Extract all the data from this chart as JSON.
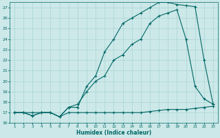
{
  "xlabel": "Humidex (Indice chaleur)",
  "bg_color": "#cce8e8",
  "grid_color": "#aad4d4",
  "line_color": "#006666",
  "xlim": [
    0.5,
    23.5
  ],
  "ylim": [
    16,
    27.5
  ],
  "ytick_values": [
    16,
    17,
    18,
    19,
    20,
    21,
    22,
    23,
    24,
    25,
    26,
    27
  ],
  "xtick_values": [
    1,
    2,
    3,
    4,
    5,
    6,
    7,
    8,
    9,
    10,
    11,
    12,
    13,
    14,
    15,
    16,
    17,
    18,
    19,
    20,
    21,
    22,
    23
  ],
  "series": [
    {
      "x": [
        1,
        2,
        3,
        4,
        5,
        6,
        7,
        8,
        9,
        10,
        11,
        12,
        13,
        14,
        15,
        16,
        17,
        18,
        19,
        20,
        21,
        22,
        23
      ],
      "y": [
        17,
        17,
        17,
        17,
        17,
        16.6,
        17,
        17,
        17,
        17,
        17,
        17,
        17,
        17,
        17,
        17.1,
        17.2,
        17.3,
        17.3,
        17.3,
        17.4,
        17.5,
        17.6
      ]
    },
    {
      "x": [
        1,
        2,
        3,
        4,
        5,
        6,
        7,
        8,
        9,
        10,
        11,
        12,
        13,
        14,
        15,
        16,
        17,
        18,
        19,
        20,
        21,
        22,
        23
      ],
      "y": [
        17,
        17,
        16.7,
        17,
        17,
        16.6,
        17.5,
        17.8,
        19.0,
        20.0,
        20.5,
        22.0,
        22.5,
        23.5,
        24.0,
        25.5,
        26.2,
        26.5,
        26.8,
        24.0,
        19.5,
        18.3,
        17.8
      ]
    },
    {
      "x": [
        1,
        2,
        3,
        4,
        5,
        6,
        7,
        8,
        9,
        10,
        11,
        12,
        13,
        14,
        15,
        16,
        17,
        18,
        19,
        20,
        21,
        22,
        23
      ],
      "y": [
        17,
        17,
        16.7,
        17,
        17,
        16.6,
        17.5,
        17.5,
        19.5,
        20.5,
        22.8,
        24.0,
        25.5,
        26.0,
        26.5,
        27.0,
        27.5,
        27.5,
        27.3,
        27.2,
        27.1,
        22.0,
        17.8
      ]
    }
  ]
}
